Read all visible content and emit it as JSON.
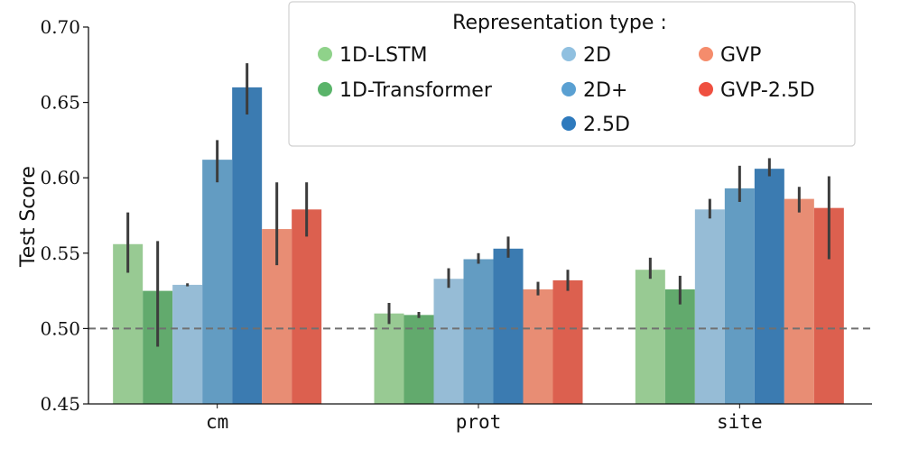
{
  "chart_data": {
    "type": "bar",
    "title": "",
    "xlabel": "",
    "ylabel": "Test Score",
    "ylim": [
      0.45,
      0.7
    ],
    "yticks": [
      "0.45",
      "0.50",
      "0.55",
      "0.60",
      "0.65",
      "0.70"
    ],
    "categories": [
      "cm",
      "prot",
      "site"
    ],
    "baseline": 0.5,
    "legend_title": "Representation type :",
    "legend_position": "top-right",
    "series": [
      {
        "name": "1D-LSTM",
        "color": "#98ca93",
        "legend_color": "#8fd28a",
        "values": [
          0.556,
          0.51,
          0.539
        ],
        "err_low": [
          0.537,
          0.503,
          0.533
        ],
        "err_high": [
          0.577,
          0.517,
          0.547
        ]
      },
      {
        "name": "1D-Transformer",
        "color": "#62aa6d",
        "legend_color": "#5ab46a",
        "values": [
          0.525,
          0.509,
          0.526
        ],
        "err_low": [
          0.488,
          0.507,
          0.516
        ],
        "err_high": [
          0.558,
          0.511,
          0.535
        ]
      },
      {
        "name": "2D",
        "color": "#96bcd6",
        "legend_color": "#90c0e0",
        "values": [
          0.529,
          0.533,
          0.579
        ],
        "err_low": [
          0.528,
          0.527,
          0.573
        ],
        "err_high": [
          0.53,
          0.54,
          0.586
        ]
      },
      {
        "name": "2D+",
        "color": "#639cc2",
        "legend_color": "#5aa0d2",
        "values": [
          0.612,
          0.546,
          0.593
        ],
        "err_low": [
          0.597,
          0.543,
          0.584
        ],
        "err_high": [
          0.625,
          0.55,
          0.608
        ]
      },
      {
        "name": "2.5D",
        "color": "#3b7bb1",
        "legend_color": "#2e7abd",
        "values": [
          0.66,
          0.553,
          0.606
        ],
        "err_low": [
          0.642,
          0.547,
          0.601
        ],
        "err_high": [
          0.676,
          0.561,
          0.613
        ]
      },
      {
        "name": "GVP",
        "color": "#e88d74",
        "legend_color": "#f58c6c",
        "values": [
          0.566,
          0.526,
          0.586
        ],
        "err_low": [
          0.542,
          0.522,
          0.577
        ],
        "err_high": [
          0.597,
          0.531,
          0.594
        ]
      },
      {
        "name": "GVP-2.5D",
        "color": "#dc604f",
        "legend_color": "#ef5040",
        "values": [
          0.579,
          0.532,
          0.58
        ],
        "err_low": [
          0.561,
          0.525,
          0.546
        ],
        "err_high": [
          0.597,
          0.539,
          0.601
        ]
      }
    ]
  }
}
